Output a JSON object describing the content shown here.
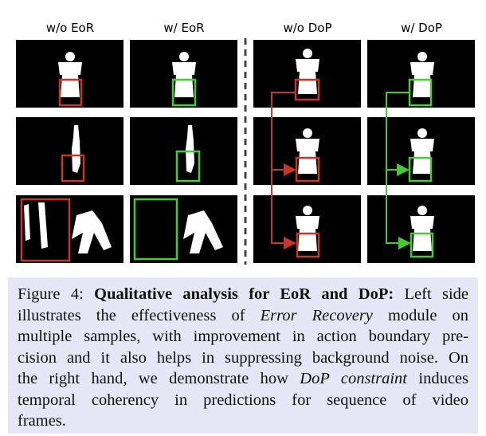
{
  "figure": {
    "columns": [
      "w/o EoR",
      "w/ EoR",
      "w/o DoP",
      "w/ DoP"
    ]
  },
  "caption": {
    "lines": [
      [
        {
          "text": "Figure 4: ",
          "style": "normal"
        },
        {
          "text": "Qualitative analysis for EoR and DoP:",
          "style": "bold"
        },
        {
          "text": " Left side",
          "style": "normal"
        }
      ],
      [
        {
          "text": "illustrates the effectiveness of ",
          "style": "normal"
        },
        {
          "text": "Error Recovery",
          "style": "italic"
        },
        {
          "text": " module on",
          "style": "normal"
        }
      ],
      [
        {
          "text": "multiple samples, with improvement in action boundary pre-",
          "style": "normal"
        }
      ],
      [
        {
          "text": "cision and it also helps in suppressing background noise. On",
          "style": "normal"
        }
      ],
      [
        {
          "text": "the right hand, we demonstrate how ",
          "style": "normal"
        },
        {
          "text": "DoP constraint",
          "style": "italic"
        },
        {
          "text": " induces",
          "style": "normal"
        }
      ],
      [
        {
          "text": "temporal coherency in predictions for sequence of video",
          "style": "normal"
        }
      ],
      [
        {
          "text": "frames.",
          "style": "normal"
        }
      ]
    ]
  }
}
